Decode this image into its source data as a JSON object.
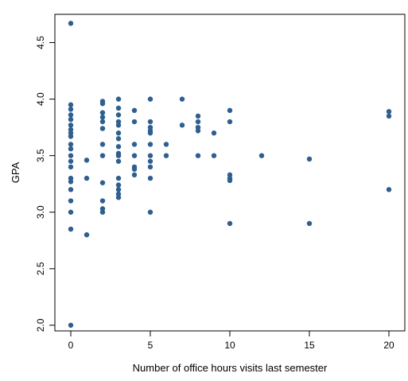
{
  "chart_data": {
    "type": "scatter",
    "title": "",
    "xlabel": "Number of office hours visits last semester",
    "ylabel": "GPA",
    "xlim": [
      -1,
      21
    ],
    "ylim": [
      1.95,
      4.75
    ],
    "xticks": [
      0,
      5,
      10,
      15,
      20
    ],
    "yticks": [
      2.0,
      2.5,
      3.0,
      3.5,
      4.0,
      4.5
    ],
    "xtick_labels": [
      "0",
      "5",
      "10",
      "15",
      "20"
    ],
    "ytick_labels": [
      "2.0",
      "2.5",
      "3.0",
      "3.5",
      "4.0",
      "4.5"
    ],
    "grid": false,
    "point_color": "#2e5f8f",
    "points": [
      [
        0,
        4.67
      ],
      [
        0,
        3.95
      ],
      [
        0,
        3.91
      ],
      [
        0,
        3.86
      ],
      [
        0,
        3.82
      ],
      [
        0,
        3.77
      ],
      [
        0,
        3.73
      ],
      [
        0,
        3.7
      ],
      [
        0,
        3.67
      ],
      [
        0,
        3.6
      ],
      [
        0,
        3.56
      ],
      [
        0,
        3.5
      ],
      [
        0,
        3.45
      ],
      [
        0,
        3.4
      ],
      [
        0,
        3.3
      ],
      [
        0,
        3.27
      ],
      [
        0,
        3.2
      ],
      [
        0,
        3.1
      ],
      [
        0,
        3.0
      ],
      [
        0,
        2.85
      ],
      [
        0,
        2.0
      ],
      [
        1,
        3.46
      ],
      [
        1,
        3.3
      ],
      [
        1,
        2.8
      ],
      [
        2,
        3.98
      ],
      [
        2,
        3.96
      ],
      [
        2,
        3.88
      ],
      [
        2,
        3.84
      ],
      [
        2,
        3.8
      ],
      [
        2,
        3.74
      ],
      [
        2,
        3.6
      ],
      [
        2,
        3.5
      ],
      [
        2,
        3.26
      ],
      [
        2,
        3.1
      ],
      [
        2,
        3.03
      ],
      [
        2,
        3.0
      ],
      [
        3,
        4.0
      ],
      [
        3,
        3.92
      ],
      [
        3,
        3.86
      ],
      [
        3,
        3.8
      ],
      [
        3,
        3.77
      ],
      [
        3,
        3.7
      ],
      [
        3,
        3.65
      ],
      [
        3,
        3.58
      ],
      [
        3,
        3.52
      ],
      [
        3,
        3.5
      ],
      [
        3,
        3.45
      ],
      [
        3,
        3.3
      ],
      [
        3,
        3.24
      ],
      [
        3,
        3.2
      ],
      [
        3,
        3.16
      ],
      [
        3,
        3.13
      ],
      [
        4,
        3.9
      ],
      [
        4,
        3.8
      ],
      [
        4,
        3.6
      ],
      [
        4,
        3.5
      ],
      [
        4,
        3.4
      ],
      [
        4,
        3.38
      ],
      [
        4,
        3.33
      ],
      [
        5,
        4.0
      ],
      [
        5,
        3.8
      ],
      [
        5,
        3.75
      ],
      [
        5,
        3.72
      ],
      [
        5,
        3.7
      ],
      [
        5,
        3.6
      ],
      [
        5,
        3.5
      ],
      [
        5,
        3.45
      ],
      [
        5,
        3.4
      ],
      [
        5,
        3.3
      ],
      [
        5,
        3.0
      ],
      [
        6,
        3.6
      ],
      [
        6,
        3.5
      ],
      [
        7,
        4.0
      ],
      [
        7,
        3.77
      ],
      [
        8,
        3.85
      ],
      [
        8,
        3.8
      ],
      [
        8,
        3.75
      ],
      [
        8,
        3.72
      ],
      [
        8,
        3.5
      ],
      [
        9,
        3.7
      ],
      [
        9,
        3.5
      ],
      [
        10,
        3.9
      ],
      [
        10,
        3.8
      ],
      [
        10,
        3.33
      ],
      [
        10,
        3.3
      ],
      [
        10,
        3.28
      ],
      [
        10,
        2.9
      ],
      [
        12,
        3.5
      ],
      [
        15,
        3.47
      ],
      [
        15,
        2.9
      ],
      [
        20,
        3.89
      ],
      [
        20,
        3.85
      ],
      [
        20,
        3.2
      ]
    ]
  }
}
